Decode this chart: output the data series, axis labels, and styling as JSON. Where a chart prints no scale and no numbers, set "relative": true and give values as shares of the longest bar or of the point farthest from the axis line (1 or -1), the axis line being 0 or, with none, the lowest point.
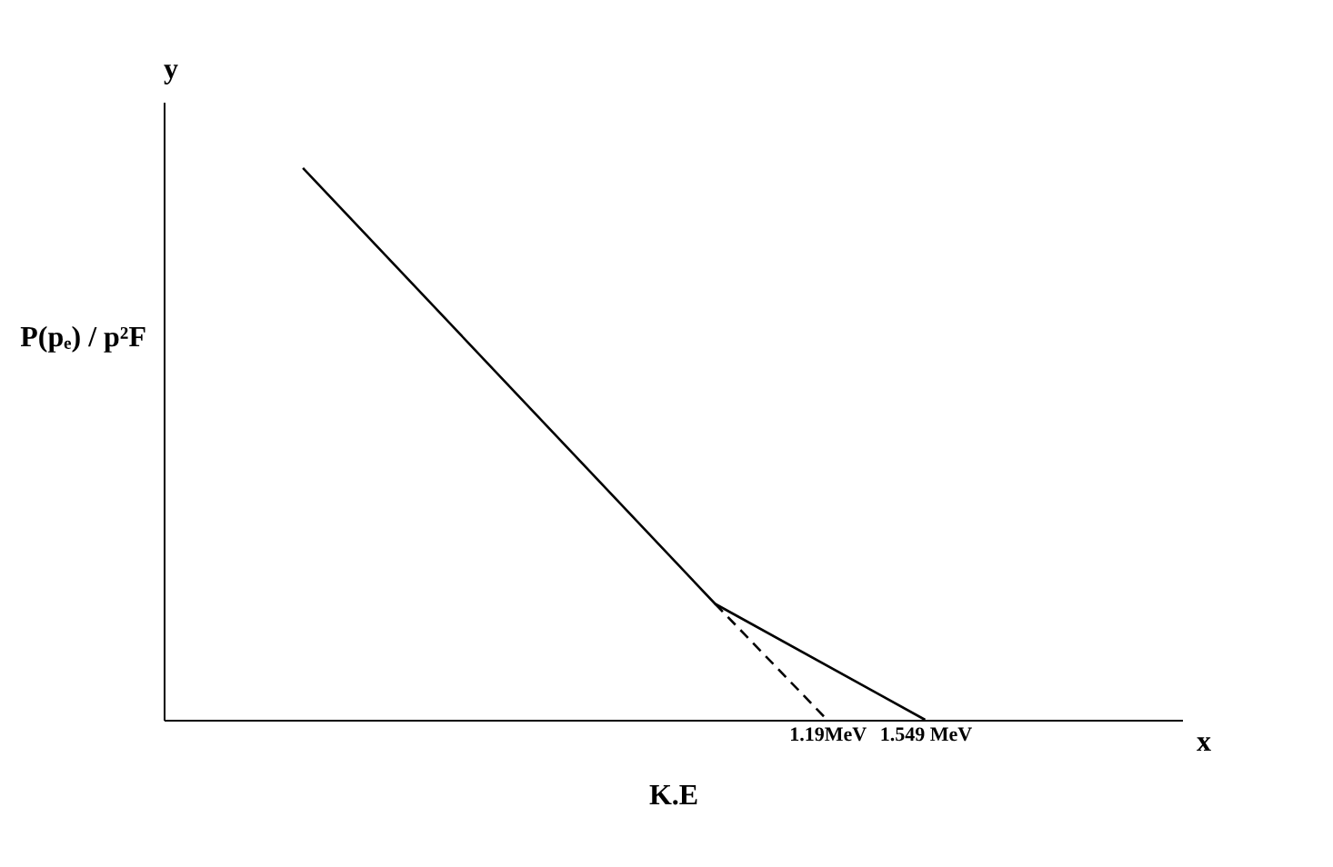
{
  "chart_data": {
    "type": "line",
    "relative": true,
    "xlabel": "K.E",
    "ylabel": "P(pₑ) / p²F",
    "annotations": [
      "y",
      "x"
    ],
    "xlim": [
      -1.24,
      2.49
    ],
    "xticks": [
      {
        "value": 1.19,
        "label": "1.19MeV"
      },
      {
        "value": 1.549,
        "label": "1.549 MeV"
      }
    ],
    "tick_labels": "x",
    "grid": false,
    "marker": "none",
    "series": [
      {
        "color": "#000000",
        "x": [
          -0.73,
          0.78,
          1.549
        ],
        "values": [
          1,
          0.21,
          0
        ],
        "line_style": "solid"
      },
      {
        "color": "#000000",
        "x": [
          0.78,
          1.19
        ],
        "values": [
          0.21,
          0
        ],
        "line_style": "dashed"
      }
    ]
  }
}
